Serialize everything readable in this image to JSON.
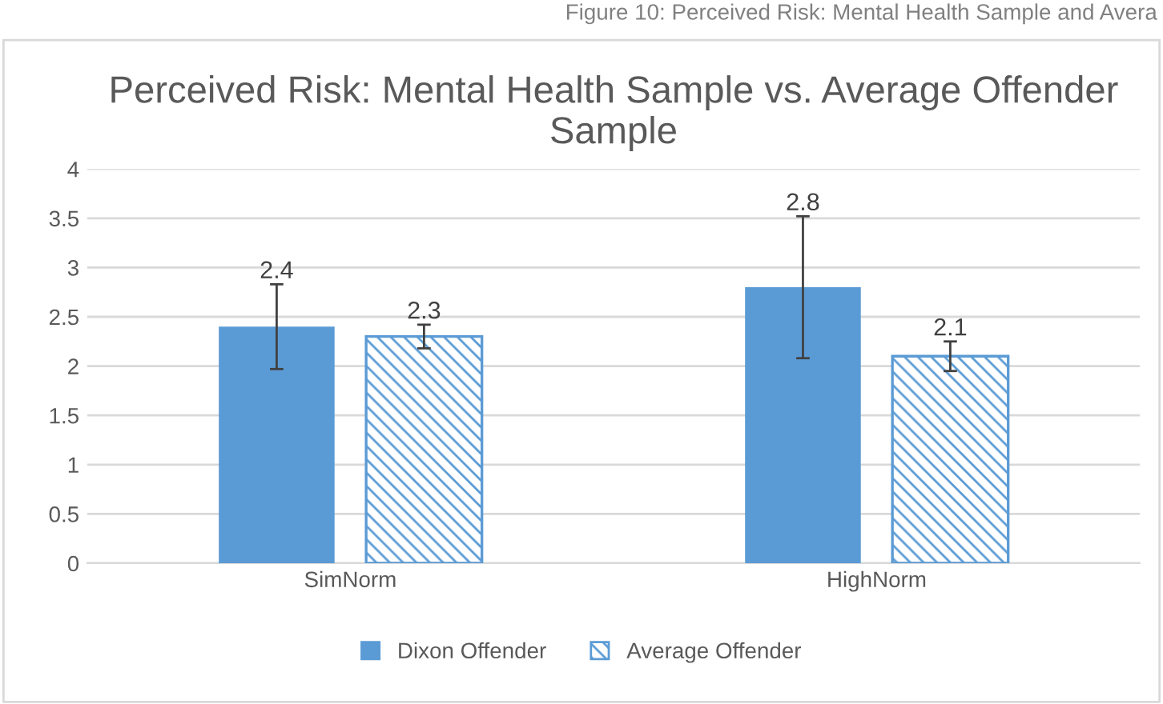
{
  "chart_data": {
    "type": "bar",
    "title": "Perceived Risk: Mental Health Sample vs. Average Offender Sample",
    "annotations": [
      "Figure 10: Perceived Risk: Mental Health Sample and Avera"
    ],
    "categories": [
      "SimNorm",
      "HighNorm"
    ],
    "series": [
      {
        "name": "Dixon Offender",
        "color": "#5b9bd5",
        "values": [
          2.4,
          2.8
        ],
        "errors": [
          0.43,
          0.72
        ]
      },
      {
        "name": "Average Offender",
        "color": "#5b9bd5",
        "values": [
          2.3,
          2.1
        ],
        "errors": [
          0.12,
          0.15
        ]
      }
    ],
    "ylim": [
      0,
      4
    ],
    "yticks": [
      0,
      0.5,
      1,
      1.5,
      2,
      2.5,
      3,
      3.5,
      4
    ],
    "grid": "y",
    "legend": "bottom",
    "data_labels": true
  }
}
